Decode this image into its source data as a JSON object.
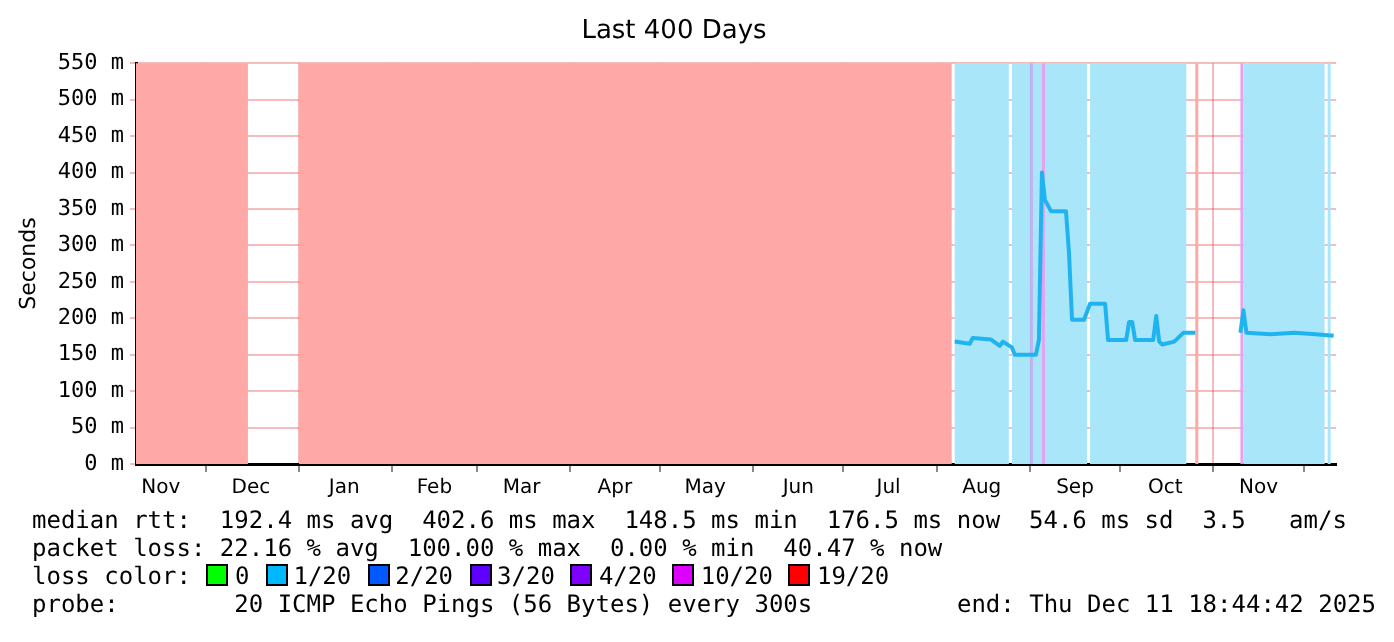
{
  "chart_data": {
    "type": "line",
    "title": "Last 400 Days",
    "ylabel": "Seconds",
    "xlim": [
      "2024-11-07T18:44",
      "2025-12-11T18:44"
    ],
    "xticks": [
      {
        "value": "2024-11-16",
        "label": "Nov"
      },
      {
        "value": "2024-12-01",
        "label": null
      },
      {
        "value": "2024-12-16",
        "label": "Dec"
      },
      {
        "value": "2025-01-01",
        "label": null
      },
      {
        "value": "2025-01-16",
        "label": "Jan"
      },
      {
        "value": "2025-02-01",
        "label": null
      },
      {
        "value": "2025-02-15",
        "label": "Feb"
      },
      {
        "value": "2025-03-01",
        "label": null
      },
      {
        "value": "2025-03-16",
        "label": "Mar"
      },
      {
        "value": "2025-04-01",
        "label": null
      },
      {
        "value": "2025-04-16",
        "label": "Apr"
      },
      {
        "value": "2025-05-01",
        "label": null
      },
      {
        "value": "2025-05-16",
        "label": "May"
      },
      {
        "value": "2025-06-01",
        "label": null
      },
      {
        "value": "2025-06-16",
        "label": "Jun"
      },
      {
        "value": "2025-07-01",
        "label": null
      },
      {
        "value": "2025-07-16",
        "label": "Jul"
      },
      {
        "value": "2025-08-01",
        "label": null
      },
      {
        "value": "2025-08-16",
        "label": "Aug"
      },
      {
        "value": "2025-09-01",
        "label": null
      },
      {
        "value": "2025-09-16",
        "label": "Sep"
      },
      {
        "value": "2025-10-01",
        "label": null
      },
      {
        "value": "2025-10-16",
        "label": "Oct"
      },
      {
        "value": "2025-11-01",
        "label": null
      },
      {
        "value": "2025-11-16",
        "label": "Nov"
      },
      {
        "value": "2025-12-01",
        "label": null
      }
    ],
    "ylim": [
      0,
      550
    ],
    "yticks": [
      {
        "value": 0,
        "label": "0 m"
      },
      {
        "value": 50,
        "label": "50 m"
      },
      {
        "value": 100,
        "label": "100 m"
      },
      {
        "value": 150,
        "label": "150 m"
      },
      {
        "value": 200,
        "label": "200 m"
      },
      {
        "value": 250,
        "label": "250 m"
      },
      {
        "value": 300,
        "label": "300 m"
      },
      {
        "value": 350,
        "label": "350 m"
      },
      {
        "value": 400,
        "label": "400 m"
      },
      {
        "value": 450,
        "label": "450 m"
      },
      {
        "value": 500,
        "label": "500 m"
      },
      {
        "value": 550,
        "label": "550 m"
      }
    ],
    "grid": true,
    "x": [
      "2025-08-07",
      "2025-08-12",
      "2025-08-13",
      "2025-08-19",
      "2025-08-22",
      "2025-08-23",
      "2025-08-26",
      "2025-08-27",
      "2025-09-03",
      "2025-09-04",
      "2025-09-05",
      "2025-09-06",
      "2025-09-07",
      "2025-09-08",
      "2025-09-13",
      "2025-09-14",
      "2025-09-15",
      "2025-09-19",
      "2025-09-21",
      "2025-09-26",
      "2025-09-27",
      "2025-10-03",
      "2025-10-04",
      "2025-10-05",
      "2025-10-06",
      "2025-10-12",
      "2025-10-13",
      "2025-10-14",
      "2025-10-15",
      "2025-10-19",
      "2025-10-22",
      "2025-10-26",
      "2025-10-27",
      "2025-11-10",
      "2025-11-11",
      "2025-11-12",
      "2025-11-20",
      "2025-11-28",
      "2025-12-05",
      "2025-12-11"
    ],
    "series": [
      {
        "color": "#1fb4f0",
        "values": [
          168,
          165,
          173,
          171,
          162,
          168,
          160,
          150,
          150,
          170,
          400,
          362,
          355,
          347,
          347,
          290,
          198,
          198,
          220,
          220,
          170,
          170,
          195,
          195,
          170,
          170,
          203,
          168,
          164,
          168,
          180,
          180,
          null,
          180,
          211,
          180,
          178,
          180,
          178,
          176
        ]
      }
    ],
    "bands": [
      {
        "axis": "x",
        "from": "2024-11-07T18:44",
        "to": "2024-12-15",
        "color": "#ffa8a8"
      },
      {
        "axis": "x",
        "from": "2025-01-01",
        "to": "2025-08-06",
        "color": "#ffa8a8"
      },
      {
        "axis": "x",
        "from": "2025-08-07",
        "to": "2025-08-25",
        "color": "#aae6fa"
      },
      {
        "axis": "x",
        "from": "2025-08-26",
        "to": "2025-09-20",
        "color": "#aae6fa"
      },
      {
        "axis": "x",
        "from": "2025-09-01",
        "to": "2025-09-02",
        "color": "#c0b0f0"
      },
      {
        "axis": "x",
        "from": "2025-09-05",
        "to": "2025-09-06",
        "color": "#e8a0f0"
      },
      {
        "axis": "x",
        "from": "2025-09-21",
        "to": "2025-10-23",
        "color": "#aae6fa"
      },
      {
        "axis": "x",
        "from": "2025-10-26",
        "to": "2025-10-27",
        "color": "#ffa8a8"
      },
      {
        "axis": "x",
        "from": "2025-11-10",
        "to": "2025-11-11",
        "color": "#e8a0f0"
      },
      {
        "axis": "x",
        "from": "2025-11-11",
        "to": "2025-12-08",
        "color": "#aae6fa"
      },
      {
        "axis": "x",
        "from": "2025-12-09",
        "to": "2025-12-10",
        "color": "#aae6fa"
      }
    ],
    "annotations": [
      "median rtt:  192.4 ms avg  402.6 ms max  148.5 ms min  176.5 ms now  54.6 ms sd  3.5   am/s",
      "packet loss: 22.16 % avg  100.00 % max  0.00 % min  40.47 % now",
      "loss color:",
      "0",
      "1/20",
      "2/20",
      "3/20",
      "4/20",
      "10/20",
      "19/20",
      "probe:        20 ICMP Echo Pings (56 Bytes) every 300s",
      "end: Thu Dec 11 18:44:42 2025"
    ]
  }
}
